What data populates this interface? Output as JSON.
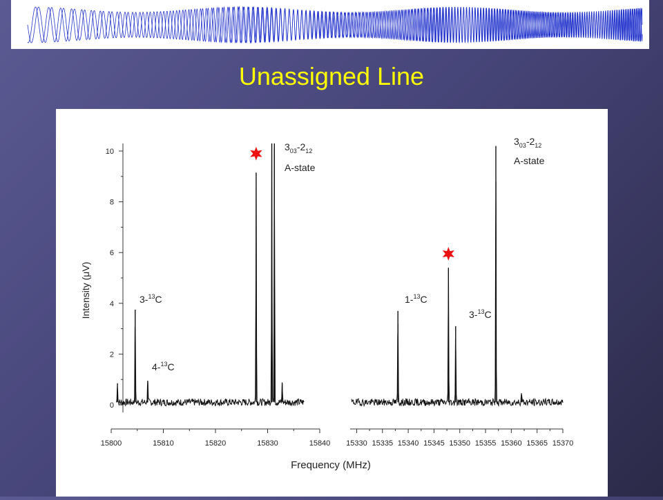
{
  "slide": {
    "title": "Unassigned Line"
  },
  "colors": {
    "banner_trace": "#2233cc",
    "title": "#ffff00",
    "star": "#ee1111",
    "trace": "#111111"
  },
  "chart_data": {
    "type": "line",
    "xlabel": "Frequency (MHz)",
    "ylabel_main": "Intensity (",
    "ylabel_symbol": "μ",
    "ylabel_end": "V)",
    "ylim": [
      0,
      10
    ],
    "yticks": [
      0,
      2,
      4,
      6,
      8,
      10
    ],
    "grid": false,
    "panels": [
      {
        "xlim": [
          15800,
          15840
        ],
        "xticks": [
          15800,
          15810,
          15820,
          15830,
          15840
        ],
        "trace_range": [
          15801,
          15837
        ],
        "noise_seed": 7,
        "peaks": [
          {
            "x": 15801.2,
            "y": 0.85
          },
          {
            "x": 15804.6,
            "y": 3.75
          },
          {
            "x": 15807.0,
            "y": 0.95
          },
          {
            "x": 15827.8,
            "y": 9.15
          },
          {
            "x": 15830.8,
            "y": 10.3
          },
          {
            "x": 15831.3,
            "y": 10.3
          },
          {
            "x": 15832.8,
            "y": 0.85
          }
        ]
      },
      {
        "xlim": [
          15329,
          15370
        ],
        "xticks": [
          15330,
          15335,
          15340,
          15345,
          15350,
          15355,
          15360,
          15365,
          15370
        ],
        "trace_range": [
          15329,
          15370
        ],
        "noise_seed": 19,
        "peaks": [
          {
            "x": 15338.0,
            "y": 3.7
          },
          {
            "x": 15347.8,
            "y": 5.4
          },
          {
            "x": 15349.2,
            "y": 3.1
          },
          {
            "x": 15357.0,
            "y": 10.2
          },
          {
            "x": 15362.0,
            "y": 0.4
          }
        ]
      }
    ],
    "annotations": [
      {
        "id": "a1",
        "base": "3",
        "sup": "",
        "sub": "03",
        "tail": "-2",
        "sub2": "12",
        "line2": "A-state"
      },
      {
        "id": "a2",
        "base": "3",
        "sup": "",
        "sub": "03",
        "tail": "-2",
        "sub2": "12",
        "line2": "A-state"
      },
      {
        "id": "a3",
        "base": "3-",
        "sup": "13",
        "sub": "",
        "tail": "C",
        "sub2": "",
        "line2": ""
      },
      {
        "id": "a4",
        "base": "4-",
        "sup": "13",
        "sub": "",
        "tail": "C",
        "sub2": "",
        "line2": ""
      },
      {
        "id": "a5",
        "base": "1-",
        "sup": "13",
        "sub": "",
        "tail": "C",
        "sub2": "",
        "line2": ""
      },
      {
        "id": "a6",
        "base": "3-",
        "sup": "13",
        "sub": "",
        "tail": "C",
        "sub2": "",
        "line2": ""
      }
    ],
    "stars": [
      {
        "panel": 0,
        "x": 15827.8,
        "y": 9.9
      },
      {
        "panel": 1,
        "x": 15347.8,
        "y": 5.95
      }
    ]
  }
}
